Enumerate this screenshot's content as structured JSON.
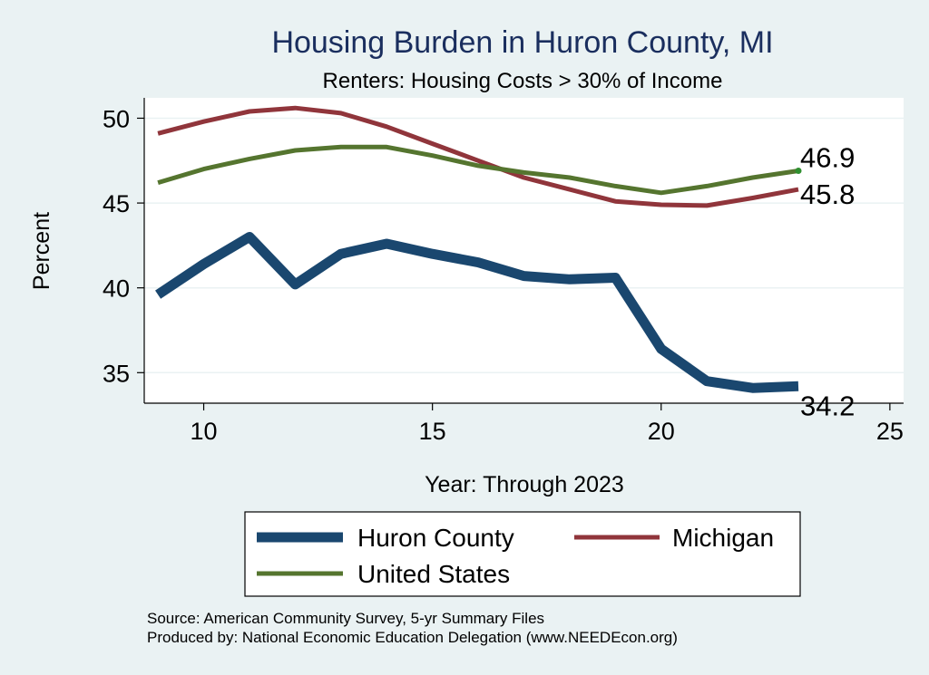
{
  "chart_data": {
    "type": "line",
    "title": "Housing Burden in Huron County, MI",
    "subtitle": "Renters: Housing Costs > 30% of Income",
    "xlabel": "Year: Through 2023",
    "ylabel": "Percent",
    "xlim": [
      8.7,
      25.3
    ],
    "ylim": [
      33.2,
      51.2
    ],
    "x_ticks": [
      10,
      15,
      20,
      25
    ],
    "y_ticks": [
      35,
      40,
      45,
      50
    ],
    "x": [
      9,
      10,
      11,
      12,
      13,
      14,
      15,
      16,
      17,
      18,
      19,
      20,
      21,
      22,
      23
    ],
    "series": [
      {
        "name": "Huron County",
        "color": "#1a476f",
        "values": [
          39.6,
          41.4,
          43.0,
          40.2,
          42.0,
          42.6,
          42.0,
          41.5,
          40.7,
          40.5,
          40.6,
          36.4,
          34.5,
          34.1,
          34.2
        ],
        "end_label": "34.2"
      },
      {
        "name": "Michigan",
        "color": "#90353b",
        "values": [
          49.1,
          49.8,
          50.4,
          50.6,
          50.3,
          49.5,
          48.5,
          47.5,
          46.5,
          45.8,
          45.1,
          44.9,
          44.85,
          45.3,
          45.8
        ],
        "end_label": "45.8"
      },
      {
        "name": "United States",
        "color": "#55752f",
        "values": [
          46.2,
          47.0,
          47.6,
          48.1,
          48.3,
          48.3,
          47.8,
          47.2,
          46.8,
          46.5,
          46.0,
          45.6,
          46.0,
          46.5,
          46.9
        ],
        "end_label": "46.9"
      }
    ],
    "legend": [
      "Huron County",
      "Michigan",
      "United States"
    ],
    "notes": [
      "Source: American Community Survey, 5-yr Summary Files",
      "Produced by: National Economic Education Delegation (www.NEEDEcon.org)"
    ]
  }
}
